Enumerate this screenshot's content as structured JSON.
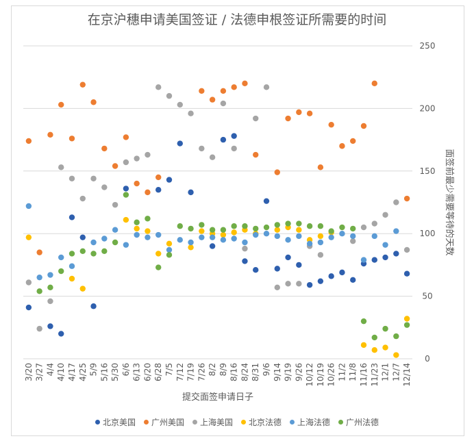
{
  "chart_data": {
    "type": "scatter",
    "title": "在京沪穗申请美国签证 / 法德申根签证所需要的时间",
    "xlabel": "提交面签申请日子",
    "ylabel": "面签前最少需要等待的天数",
    "ylim": [
      0,
      250
    ],
    "yticks": [
      0,
      50,
      100,
      150,
      200,
      250
    ],
    "y_axis_side": "right",
    "grid": "horizontal",
    "legend_position": "bottom",
    "categories": [
      "3/20",
      "3/27",
      "4/4",
      "4/10",
      "4/17",
      "4/25",
      "5/9",
      "5/16",
      "5/30",
      "6/6",
      "6/13",
      "6/20",
      "6/28",
      "7/5",
      "7/12",
      "7/19",
      "7/26",
      "8/2",
      "8/9",
      "8/16",
      "8/24",
      "8/31",
      "9/6",
      "9/14",
      "9/19",
      "9/26",
      "10/12",
      "10/19",
      "10/26",
      "11/2",
      "11/8",
      "11/16",
      "11/23",
      "12/1",
      "12/7",
      "12/14"
    ],
    "series": [
      {
        "name": "北京美国",
        "color": "#2e5fae",
        "values": [
          41,
          null,
          26,
          20,
          113,
          97,
          42,
          null,
          null,
          136,
          null,
          null,
          135,
          143,
          172,
          133,
          null,
          90,
          175,
          178,
          78,
          71,
          126,
          72,
          81,
          75,
          59,
          62,
          66,
          69,
          63,
          76,
          79,
          81,
          84,
          68
        ]
      },
      {
        "name": "广州美国",
        "color": "#ed7d31",
        "values": [
          174,
          85,
          179,
          203,
          176,
          219,
          205,
          168,
          154,
          177,
          140,
          133,
          145,
          null,
          null,
          null,
          214,
          207,
          214,
          217,
          220,
          163,
          null,
          149,
          192,
          197,
          196,
          153,
          187,
          170,
          174,
          186,
          220,
          null,
          null,
          128
        ]
      },
      {
        "name": "上海美国",
        "color": "#a5a5a5",
        "values": [
          61,
          24,
          46,
          153,
          144,
          128,
          144,
          137,
          123,
          157,
          160,
          163,
          217,
          210,
          203,
          196,
          168,
          161,
          204,
          168,
          88,
          192,
          217,
          57,
          60,
          60,
          90,
          83,
          null,
          null,
          94,
          105,
          108,
          115,
          125,
          87
        ]
      },
      {
        "name": "北京法德",
        "color": "#ffc000",
        "values": [
          97,
          null,
          null,
          null,
          64,
          56,
          null,
          null,
          null,
          111,
          104,
          102,
          84,
          92,
          null,
          89,
          102,
          100,
          99,
          101,
          103,
          100,
          null,
          103,
          105,
          103,
          95,
          98,
          101,
          null,
          null,
          11,
          7,
          9,
          3,
          32
        ]
      },
      {
        "name": "上海法德",
        "color": "#5b9bd5",
        "values": [
          122,
          65,
          67,
          81,
          74,
          null,
          93,
          96,
          103,
          91,
          99,
          97,
          99,
          87,
          95,
          93,
          97,
          97,
          95,
          96,
          93,
          99,
          100,
          98,
          95,
          98,
          92,
          93,
          97,
          100,
          98,
          79,
          98,
          91,
          102,
          null
        ]
      },
      {
        "name": "广州法德",
        "color": "#70ad47",
        "values": [
          null,
          54,
          57,
          70,
          84,
          86,
          84,
          86,
          93,
          131,
          109,
          112,
          73,
          83,
          106,
          104,
          107,
          103,
          103,
          106,
          106,
          104,
          105,
          107,
          108,
          108,
          106,
          106,
          102,
          105,
          104,
          30,
          17,
          24,
          18,
          27
        ]
      }
    ]
  }
}
